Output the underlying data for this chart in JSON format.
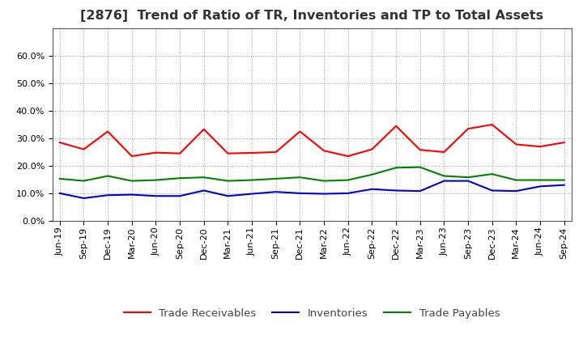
{
  "title": "[2876]  Trend of Ratio of TR, Inventories and TP to Total Assets",
  "x_labels": [
    "Jun-19",
    "Sep-19",
    "Dec-19",
    "Mar-20",
    "Jun-20",
    "Sep-20",
    "Dec-20",
    "Mar-21",
    "Jun-21",
    "Sep-21",
    "Dec-21",
    "Mar-22",
    "Jun-22",
    "Sep-22",
    "Dec-22",
    "Mar-23",
    "Jun-23",
    "Sep-23",
    "Dec-23",
    "Mar-24",
    "Jun-24",
    "Sep-24"
  ],
  "trade_receivables": [
    0.285,
    0.26,
    0.325,
    0.235,
    0.248,
    0.245,
    0.333,
    0.245,
    0.247,
    0.25,
    0.325,
    0.255,
    0.235,
    0.26,
    0.345,
    0.258,
    0.25,
    0.335,
    0.35,
    0.278,
    0.27,
    0.285
  ],
  "inventories": [
    0.1,
    0.082,
    0.093,
    0.095,
    0.09,
    0.09,
    0.11,
    0.09,
    0.098,
    0.105,
    0.1,
    0.098,
    0.1,
    0.115,
    0.11,
    0.108,
    0.145,
    0.145,
    0.11,
    0.108,
    0.125,
    0.13
  ],
  "trade_payables": [
    0.153,
    0.145,
    0.163,
    0.145,
    0.148,
    0.155,
    0.158,
    0.145,
    0.148,
    0.153,
    0.158,
    0.145,
    0.148,
    0.168,
    0.193,
    0.195,
    0.163,
    0.158,
    0.17,
    0.148,
    0.148,
    0.148
  ],
  "tr_color": "#FF0000",
  "inv_color": "#0000CC",
  "tp_color": "#008000",
  "ylim": [
    0.0,
    0.7
  ],
  "yticks": [
    0.0,
    0.1,
    0.2,
    0.3,
    0.4,
    0.5,
    0.6
  ],
  "legend_labels": [
    "Trade Receivables",
    "Inventories",
    "Trade Payables"
  ],
  "background_color": "#FFFFFF",
  "plot_bg_color": "#FFFFFF",
  "grid_color": "#999999",
  "title_fontsize": 11.5,
  "tick_fontsize": 8,
  "legend_fontsize": 9.5
}
